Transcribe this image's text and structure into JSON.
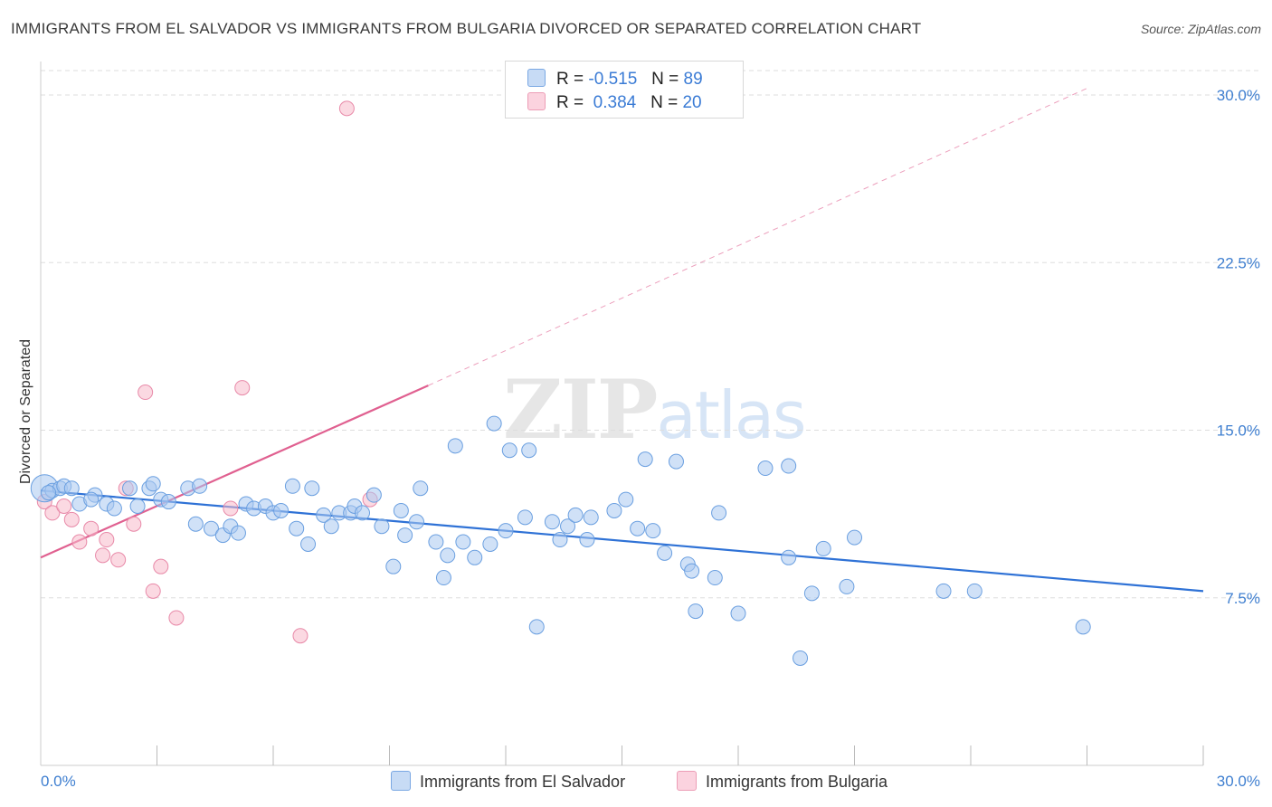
{
  "header": {
    "title": "IMMIGRANTS FROM EL SALVADOR VS IMMIGRANTS FROM BULGARIA DIVORCED OR SEPARATED CORRELATION CHART",
    "source": "Source: ZipAtlas.com"
  },
  "watermark": {
    "zip": "ZIP",
    "atlas": "atlas"
  },
  "legend_top": {
    "rows": [
      {
        "r_label": "R =",
        "r_value": "-0.515",
        "n_label": "N =",
        "n_value": "89",
        "color": "#a9c8f0"
      },
      {
        "r_label": "R =",
        "r_value": "0.384",
        "n_label": "N =",
        "n_value": "20",
        "color": "#f7b9cb"
      }
    ]
  },
  "legend_bottom": {
    "series1": "Immigrants from El Salvador",
    "series2": "Immigrants from Bulgaria"
  },
  "colors": {
    "blue_fill": "#a9c8f0",
    "blue_stroke": "#6a9fe0",
    "blue_line": "#2f72d6",
    "pink_fill": "#f7b9cb",
    "pink_stroke": "#e889a8",
    "pink_line": "#e06090",
    "grid": "#dddddd",
    "tick_text": "#3f7fd0"
  },
  "chart_data": {
    "type": "scatter",
    "title": "IMMIGRANTS FROM EL SALVADOR VS IMMIGRANTS FROM BULGARIA DIVORCED OR SEPARATED CORRELATION CHART",
    "xlabel": "",
    "ylabel": "Divorced or Separated",
    "xlim": [
      0,
      30
    ],
    "ylim": [
      0,
      31.5
    ],
    "x_tick_labels": [
      "0.0%",
      "30.0%"
    ],
    "y_ticks": [
      7.5,
      15.0,
      22.5,
      30.0
    ],
    "y_tick_labels": [
      "7.5%",
      "15.0%",
      "22.5%",
      "30.0%"
    ],
    "grid": "horizontal dashed",
    "legend_placement": "top-center and bottom",
    "series": [
      {
        "name": "Immigrants from El Salvador",
        "r": -0.515,
        "n": 89,
        "trend": {
          "x": [
            0,
            30
          ],
          "y": [
            12.3,
            7.8
          ]
        },
        "points": [
          [
            0.1,
            12.4
          ],
          [
            0.3,
            12.3
          ],
          [
            0.5,
            12.4
          ],
          [
            0.6,
            12.5
          ],
          [
            0.8,
            12.4
          ],
          [
            1.0,
            11.7
          ],
          [
            1.4,
            12.1
          ],
          [
            1.7,
            11.7
          ],
          [
            1.9,
            11.5
          ],
          [
            2.3,
            12.4
          ],
          [
            2.5,
            11.6
          ],
          [
            2.8,
            12.4
          ],
          [
            2.9,
            12.6
          ],
          [
            3.1,
            11.9
          ],
          [
            3.3,
            11.8
          ],
          [
            3.8,
            12.4
          ],
          [
            4.1,
            12.5
          ],
          [
            4.0,
            10.8
          ],
          [
            4.4,
            10.6
          ],
          [
            4.7,
            10.3
          ],
          [
            4.9,
            10.7
          ],
          [
            5.1,
            10.4
          ],
          [
            5.3,
            11.7
          ],
          [
            5.5,
            11.5
          ],
          [
            5.8,
            11.6
          ],
          [
            6.0,
            11.3
          ],
          [
            6.2,
            11.4
          ],
          [
            6.5,
            12.5
          ],
          [
            6.6,
            10.6
          ],
          [
            6.9,
            9.9
          ],
          [
            7.0,
            12.4
          ],
          [
            7.3,
            11.2
          ],
          [
            7.5,
            10.7
          ],
          [
            7.7,
            11.3
          ],
          [
            8.0,
            11.3
          ],
          [
            8.1,
            11.6
          ],
          [
            8.3,
            11.3
          ],
          [
            8.6,
            12.1
          ],
          [
            8.8,
            10.7
          ],
          [
            9.1,
            8.9
          ],
          [
            9.3,
            11.4
          ],
          [
            9.4,
            10.3
          ],
          [
            9.7,
            10.9
          ],
          [
            9.8,
            12.4
          ],
          [
            10.2,
            10.0
          ],
          [
            10.4,
            8.4
          ],
          [
            10.5,
            9.4
          ],
          [
            10.7,
            14.3
          ],
          [
            10.9,
            10.0
          ],
          [
            11.2,
            9.3
          ],
          [
            11.6,
            9.9
          ],
          [
            11.7,
            15.3
          ],
          [
            12.0,
            10.5
          ],
          [
            12.1,
            14.1
          ],
          [
            12.5,
            11.1
          ],
          [
            12.6,
            14.1
          ],
          [
            12.8,
            6.2
          ],
          [
            13.2,
            10.9
          ],
          [
            13.4,
            10.1
          ],
          [
            13.6,
            10.7
          ],
          [
            13.8,
            11.2
          ],
          [
            14.1,
            10.1
          ],
          [
            14.2,
            11.1
          ],
          [
            14.8,
            11.4
          ],
          [
            15.1,
            11.9
          ],
          [
            15.4,
            10.6
          ],
          [
            15.6,
            13.7
          ],
          [
            15.8,
            10.5
          ],
          [
            16.1,
            9.5
          ],
          [
            16.4,
            13.6
          ],
          [
            16.7,
            9.0
          ],
          [
            16.8,
            8.7
          ],
          [
            16.9,
            6.9
          ],
          [
            17.4,
            8.4
          ],
          [
            17.5,
            11.3
          ],
          [
            18.0,
            6.8
          ],
          [
            18.7,
            13.3
          ],
          [
            19.3,
            9.3
          ],
          [
            19.3,
            13.4
          ],
          [
            19.6,
            4.8
          ],
          [
            19.9,
            7.7
          ],
          [
            20.2,
            9.7
          ],
          [
            20.8,
            8.0
          ],
          [
            21.0,
            10.2
          ],
          [
            23.3,
            7.8
          ],
          [
            24.1,
            7.8
          ],
          [
            26.9,
            6.2
          ],
          [
            0.2,
            12.2
          ],
          [
            1.3,
            11.9
          ]
        ]
      },
      {
        "name": "Immigrants from Bulgaria",
        "r": 0.384,
        "n": 20,
        "trend": {
          "x": [
            0,
            10
          ],
          "y": [
            9.3,
            17.0
          ]
        },
        "trend_extension": {
          "x": [
            10,
            27
          ],
          "y": [
            17.0,
            30.3
          ]
        },
        "points": [
          [
            0.1,
            11.8
          ],
          [
            0.3,
            11.3
          ],
          [
            0.6,
            11.6
          ],
          [
            0.8,
            11.0
          ],
          [
            1.0,
            10.0
          ],
          [
            1.3,
            10.6
          ],
          [
            1.6,
            9.4
          ],
          [
            1.7,
            10.1
          ],
          [
            2.0,
            9.2
          ],
          [
            2.2,
            12.4
          ],
          [
            2.4,
            10.8
          ],
          [
            2.7,
            16.7
          ],
          [
            3.1,
            8.9
          ],
          [
            2.9,
            7.8
          ],
          [
            3.5,
            6.6
          ],
          [
            4.9,
            11.5
          ],
          [
            5.2,
            16.9
          ],
          [
            6.7,
            5.8
          ],
          [
            7.9,
            29.4
          ],
          [
            8.5,
            11.9
          ]
        ]
      }
    ]
  }
}
